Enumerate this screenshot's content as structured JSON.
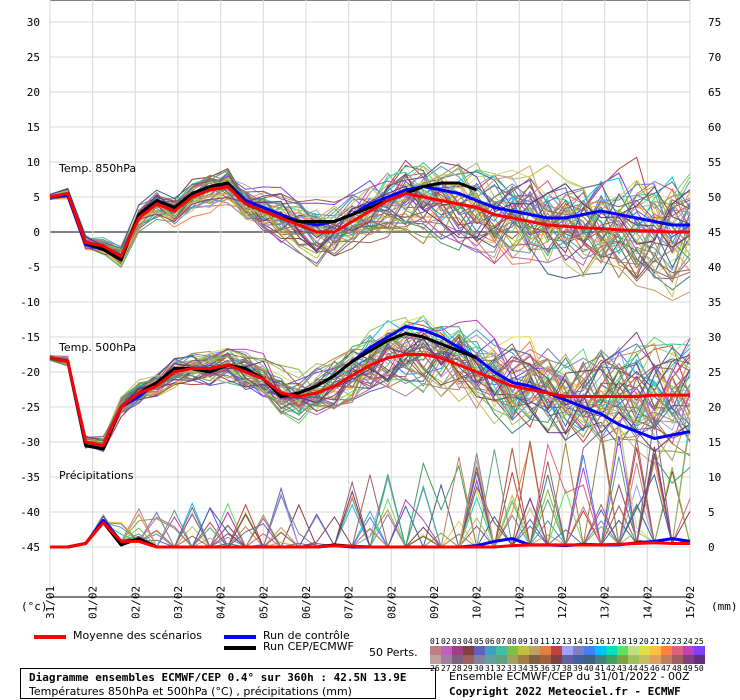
{
  "chart_data": {
    "type": "line",
    "left_axis": {
      "unit": "(°c)",
      "ticks": [
        30,
        25,
        20,
        15,
        10,
        5,
        0,
        -5,
        -10,
        -15,
        -20,
        -25,
        -30,
        -35,
        -40,
        -45
      ]
    },
    "right_axis": {
      "unit": "(mm)",
      "ticks": [
        75,
        70,
        65,
        60,
        55,
        50,
        45,
        40,
        35,
        30,
        25,
        20,
        15,
        10,
        5,
        0
      ]
    },
    "x_ticks": [
      "31/01",
      "01/02",
      "02/02",
      "03/02",
      "04/02",
      "05/02",
      "06/02",
      "07/02",
      "08/02",
      "09/02",
      "10/02",
      "11/02",
      "12/02",
      "13/02",
      "14/02",
      "15/02"
    ],
    "panels": {
      "t850": {
        "label": "Temp. 850hPa",
        "mean": [
          5,
          5.5,
          -1.5,
          -2,
          -3.5,
          2,
          4,
          3,
          5,
          6,
          6.5,
          4,
          3,
          2,
          1,
          0,
          0,
          1.5,
          3,
          4.5,
          5.5,
          5,
          4.5,
          4,
          3.5,
          2.5,
          2,
          1.5,
          1,
          0.8,
          0.6,
          0.5,
          0.3,
          0.2,
          0.1,
          0,
          0
        ],
        "control": [
          5,
          5.2,
          -1.8,
          -2.5,
          -3.8,
          2.5,
          4.5,
          3.5,
          5.5,
          6.5,
          7,
          4.5,
          3.5,
          2.5,
          1.5,
          1,
          1.5,
          2.5,
          4,
          5,
          6,
          6.5,
          6,
          5.5,
          4.5,
          3.5,
          3,
          2.5,
          2,
          2,
          2.5,
          3,
          2.5,
          2,
          1.5,
          1,
          1
        ],
        "run": [
          5,
          5.5,
          -1.5,
          -2.5,
          -4,
          2.5,
          4.5,
          3.5,
          5.5,
          6.5,
          7,
          4,
          3,
          2,
          1.5,
          1.5,
          1.5,
          2.5,
          3.5,
          4.5,
          5.5,
          6.5,
          7,
          7,
          6
        ]
      },
      "t500": {
        "label": "Temp. 500hPa",
        "mean": [
          -18,
          -18.5,
          -30,
          -30.5,
          -25,
          -23,
          -22,
          -20,
          -19.5,
          -19.5,
          -19,
          -20,
          -21,
          -23,
          -23.5,
          -23,
          -22,
          -20.5,
          -19,
          -18,
          -17.5,
          -17.5,
          -18,
          -19,
          -20,
          -21,
          -22,
          -22.5,
          -23,
          -23.5,
          -23.5,
          -23.5,
          -23.5,
          -23.5,
          -23.3,
          -23.3,
          -23.3
        ],
        "control": [
          -18,
          -18.5,
          -30.5,
          -31,
          -25,
          -23.5,
          -21.5,
          -19.5,
          -19.5,
          -20,
          -19,
          -19.5,
          -21,
          -23.5,
          -23,
          -22,
          -20.5,
          -18.5,
          -16.5,
          -15,
          -13.5,
          -14,
          -15,
          -16.5,
          -18,
          -20,
          -21.5,
          -22,
          -23,
          -24,
          -25,
          -26,
          -27.5,
          -28.5,
          -29.5,
          -29,
          -28.5
        ],
        "run": [
          -18,
          -18.5,
          -30.5,
          -31,
          -25,
          -23,
          -21.5,
          -19.5,
          -19.5,
          -20,
          -19,
          -19.5,
          -21,
          -23.5,
          -23,
          -22,
          -20.5,
          -18.5,
          -17,
          -15.5,
          -14.5,
          -15,
          -16,
          -17,
          -18
        ]
      },
      "precip": {
        "label": "Précipitations",
        "mean": [
          0,
          0,
          0.5,
          3.5,
          0.8,
          0.8,
          0,
          0,
          0,
          0,
          0,
          0,
          0,
          0,
          0,
          0,
          0.2,
          0.1,
          0,
          0,
          0,
          0,
          0,
          0,
          0,
          0,
          0.2,
          0.3,
          0.3,
          0.3,
          0.3,
          0.3,
          0.4,
          0.5,
          0.6,
          0.5,
          0.5
        ],
        "control": [
          0,
          0,
          0.5,
          3.8,
          0.8,
          1,
          0,
          0,
          0,
          0,
          0,
          0,
          0,
          0,
          0,
          0,
          0.2,
          0,
          0,
          0,
          0,
          0,
          0,
          0,
          0.2,
          0.8,
          1.2,
          0.3,
          0.3,
          0.2,
          0.4,
          0.3,
          0.3,
          0.6,
          0.8,
          1.2,
          0.8
        ],
        "run": [
          0,
          0,
          0.5,
          3.5,
          0.3,
          1.2,
          0,
          0,
          0,
          0,
          0,
          0,
          0,
          0,
          0,
          0,
          0.3,
          0.1,
          0,
          0,
          0,
          0,
          0,
          0,
          0
        ]
      }
    }
  },
  "legend": {
    "mean_label": "Moyenne des scénarios",
    "control_label": "Run de contrôle",
    "run_label": "Run CEP/ECMWF",
    "perts_label": "50 Perts.",
    "pert_row1": [
      "01",
      "02",
      "03",
      "04",
      "05",
      "06",
      "07",
      "08",
      "09",
      "10",
      "11",
      "12",
      "13",
      "14",
      "15",
      "16",
      "17",
      "18",
      "19",
      "20",
      "21",
      "22",
      "23",
      "24",
      "25"
    ],
    "pert_row2": [
      "26",
      "27",
      "28",
      "29",
      "30",
      "31",
      "32",
      "33",
      "34",
      "35",
      "36",
      "37",
      "38",
      "39",
      "40",
      "41",
      "42",
      "43",
      "44",
      "45",
      "46",
      "47",
      "48",
      "49",
      "50"
    ],
    "colors": {
      "mean": "#ff0000",
      "control": "#0000ff",
      "run": "#000000",
      "pert_row1": [
        "#c08080",
        "#c060c0",
        "#a04080",
        "#804040",
        "#6060c0",
        "#40a0c0",
        "#40c0a0",
        "#80c040",
        "#c0c040",
        "#c0a060",
        "#e08040",
        "#c04040",
        "#a0a0ff",
        "#8080c0",
        "#4080ff",
        "#00c0ff",
        "#00e0c0",
        "#60e060",
        "#c0e080",
        "#e0e040",
        "#ffc040",
        "#ff8040",
        "#e06080",
        "#c040c0",
        "#8040ff"
      ],
      "pert_row2": [
        "#c0a0a0",
        "#a080a0",
        "#806080",
        "#a06060",
        "#8080a0",
        "#60a0a0",
        "#60a080",
        "#a0a060",
        "#a08040",
        "#806040",
        "#a06040",
        "#804040",
        "#6060a0",
        "#4060a0",
        "#406080",
        "#408080",
        "#40a060",
        "#80a040",
        "#a0c060",
        "#c0c060",
        "#e0a060",
        "#c08060",
        "#a06060",
        "#804080",
        "#603080"
      ]
    }
  },
  "footer": {
    "title_main": "Diagramme ensembles ECMWF/CEP 0.4° sur 360h : 42.5N 13.9E",
    "title_sub": "Températures 850hPa et 500hPa (°C) , précipitations (mm)",
    "ensemble": "Ensemble ECMWF/CEP du 31/01/2022 - 00Z",
    "copyright": "Copyright 2022 Meteociel.fr - ECMWF"
  }
}
